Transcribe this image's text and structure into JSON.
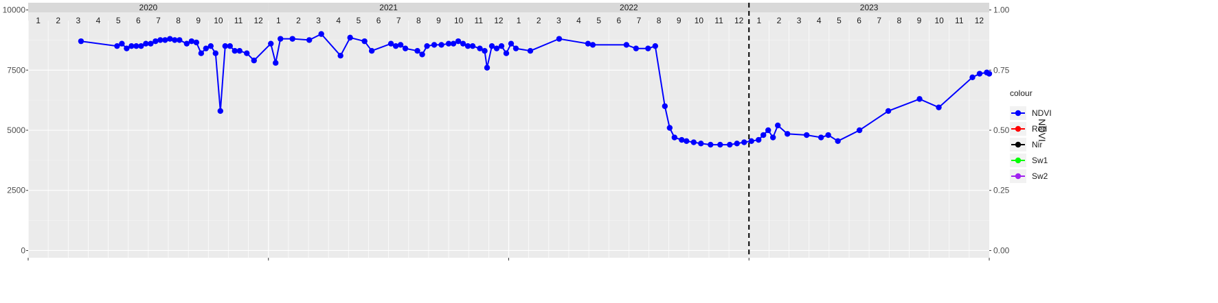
{
  "chart_data": {
    "type": "line",
    "ylabel_right": "NDVI",
    "left_axis": {
      "ylim": [
        -300,
        10300
      ],
      "ticks": [
        0,
        2500,
        5000,
        7500,
        10000
      ]
    },
    "right_axis": {
      "ylim": [
        -0.03,
        1.03
      ],
      "ticks": [
        0.0,
        0.25,
        0.5,
        0.75,
        1.0
      ],
      "tick_labels": [
        "0.00",
        "0.25",
        "0.50",
        "0.75",
        "1.00"
      ]
    },
    "x_range": [
      2020.0,
      2024.0
    ],
    "year_labels": [
      "2020",
      "2021",
      "2022",
      "2023"
    ],
    "month_labels": [
      "1",
      "2",
      "3",
      "4",
      "5",
      "6",
      "7",
      "8",
      "9",
      "10",
      "11",
      "12"
    ],
    "vline_x": 2023.0,
    "grid": true,
    "legend_position": "right",
    "legend": {
      "title": "colour",
      "items": [
        "NDVI",
        "Red",
        "Nir",
        "Sw1",
        "Sw2"
      ]
    },
    "series": [
      {
        "name": "NDVI",
        "color": "#0000FF",
        "axis": "right",
        "points": [
          [
            2020.22,
            0.87
          ],
          [
            2020.37,
            0.85
          ],
          [
            2020.39,
            0.86
          ],
          [
            2020.41,
            0.84
          ],
          [
            2020.43,
            0.85
          ],
          [
            2020.45,
            0.85
          ],
          [
            2020.47,
            0.85
          ],
          [
            2020.49,
            0.86
          ],
          [
            2020.51,
            0.86
          ],
          [
            2020.53,
            0.87
          ],
          [
            2020.55,
            0.875
          ],
          [
            2020.57,
            0.875
          ],
          [
            2020.59,
            0.88
          ],
          [
            2020.61,
            0.875
          ],
          [
            2020.63,
            0.875
          ],
          [
            2020.66,
            0.86
          ],
          [
            2020.68,
            0.87
          ],
          [
            2020.7,
            0.865
          ],
          [
            2020.72,
            0.82
          ],
          [
            2020.74,
            0.84
          ],
          [
            2020.76,
            0.85
          ],
          [
            2020.78,
            0.82
          ],
          [
            2020.8,
            0.58
          ],
          [
            2020.82,
            0.85
          ],
          [
            2020.84,
            0.85
          ],
          [
            2020.86,
            0.83
          ],
          [
            2020.88,
            0.83
          ],
          [
            2020.91,
            0.82
          ],
          [
            2020.94,
            0.79
          ],
          [
            2021.01,
            0.86
          ],
          [
            2021.03,
            0.78
          ],
          [
            2021.05,
            0.88
          ],
          [
            2021.1,
            0.88
          ],
          [
            2021.17,
            0.875
          ],
          [
            2021.22,
            0.9
          ],
          [
            2021.3,
            0.81
          ],
          [
            2021.34,
            0.885
          ],
          [
            2021.4,
            0.87
          ],
          [
            2021.43,
            0.83
          ],
          [
            2021.51,
            0.86
          ],
          [
            2021.53,
            0.85
          ],
          [
            2021.55,
            0.855
          ],
          [
            2021.57,
            0.84
          ],
          [
            2021.62,
            0.83
          ],
          [
            2021.64,
            0.815
          ],
          [
            2021.66,
            0.85
          ],
          [
            2021.69,
            0.855
          ],
          [
            2021.72,
            0.855
          ],
          [
            2021.75,
            0.86
          ],
          [
            2021.77,
            0.86
          ],
          [
            2021.79,
            0.87
          ],
          [
            2021.81,
            0.86
          ],
          [
            2021.83,
            0.85
          ],
          [
            2021.85,
            0.85
          ],
          [
            2021.88,
            0.84
          ],
          [
            2021.9,
            0.83
          ],
          [
            2021.91,
            0.76
          ],
          [
            2021.93,
            0.85
          ],
          [
            2021.95,
            0.84
          ],
          [
            2021.97,
            0.85
          ],
          [
            2021.99,
            0.82
          ],
          [
            2022.01,
            0.86
          ],
          [
            2022.03,
            0.84
          ],
          [
            2022.09,
            0.83
          ],
          [
            2022.21,
            0.88
          ],
          [
            2022.33,
            0.86
          ],
          [
            2022.35,
            0.855
          ],
          [
            2022.49,
            0.855
          ],
          [
            2022.53,
            0.84
          ],
          [
            2022.58,
            0.84
          ],
          [
            2022.61,
            0.85
          ],
          [
            2022.65,
            0.6
          ],
          [
            2022.67,
            0.51
          ],
          [
            2022.69,
            0.47
          ],
          [
            2022.72,
            0.46
          ],
          [
            2022.74,
            0.455
          ],
          [
            2022.77,
            0.45
          ],
          [
            2022.8,
            0.445
          ],
          [
            2022.84,
            0.44
          ],
          [
            2022.88,
            0.44
          ],
          [
            2022.92,
            0.44
          ],
          [
            2022.95,
            0.445
          ],
          [
            2022.98,
            0.45
          ],
          [
            2023.01,
            0.455
          ],
          [
            2023.04,
            0.46
          ],
          [
            2023.06,
            0.48
          ],
          [
            2023.08,
            0.5
          ],
          [
            2023.1,
            0.47
          ],
          [
            2023.12,
            0.52
          ],
          [
            2023.16,
            0.485
          ],
          [
            2023.24,
            0.48
          ],
          [
            2023.3,
            0.47
          ],
          [
            2023.33,
            0.48
          ],
          [
            2023.37,
            0.455
          ],
          [
            2023.46,
            0.5
          ],
          [
            2023.58,
            0.58
          ],
          [
            2023.71,
            0.63
          ],
          [
            2023.79,
            0.595
          ],
          [
            2023.93,
            0.72
          ],
          [
            2023.96,
            0.735
          ],
          [
            2023.99,
            0.74
          ],
          [
            2023.99,
            0.74
          ],
          [
            2024.0,
            0.735
          ]
        ]
      },
      {
        "name": "Red",
        "color": "#FF0000",
        "axis": "left",
        "points": []
      },
      {
        "name": "Nir",
        "color": "#000000",
        "axis": "left",
        "points": []
      },
      {
        "name": "Sw1",
        "color": "#00FF00",
        "axis": "left",
        "points": []
      },
      {
        "name": "Sw2",
        "color": "#A020F0",
        "axis": "left",
        "points": []
      }
    ]
  }
}
